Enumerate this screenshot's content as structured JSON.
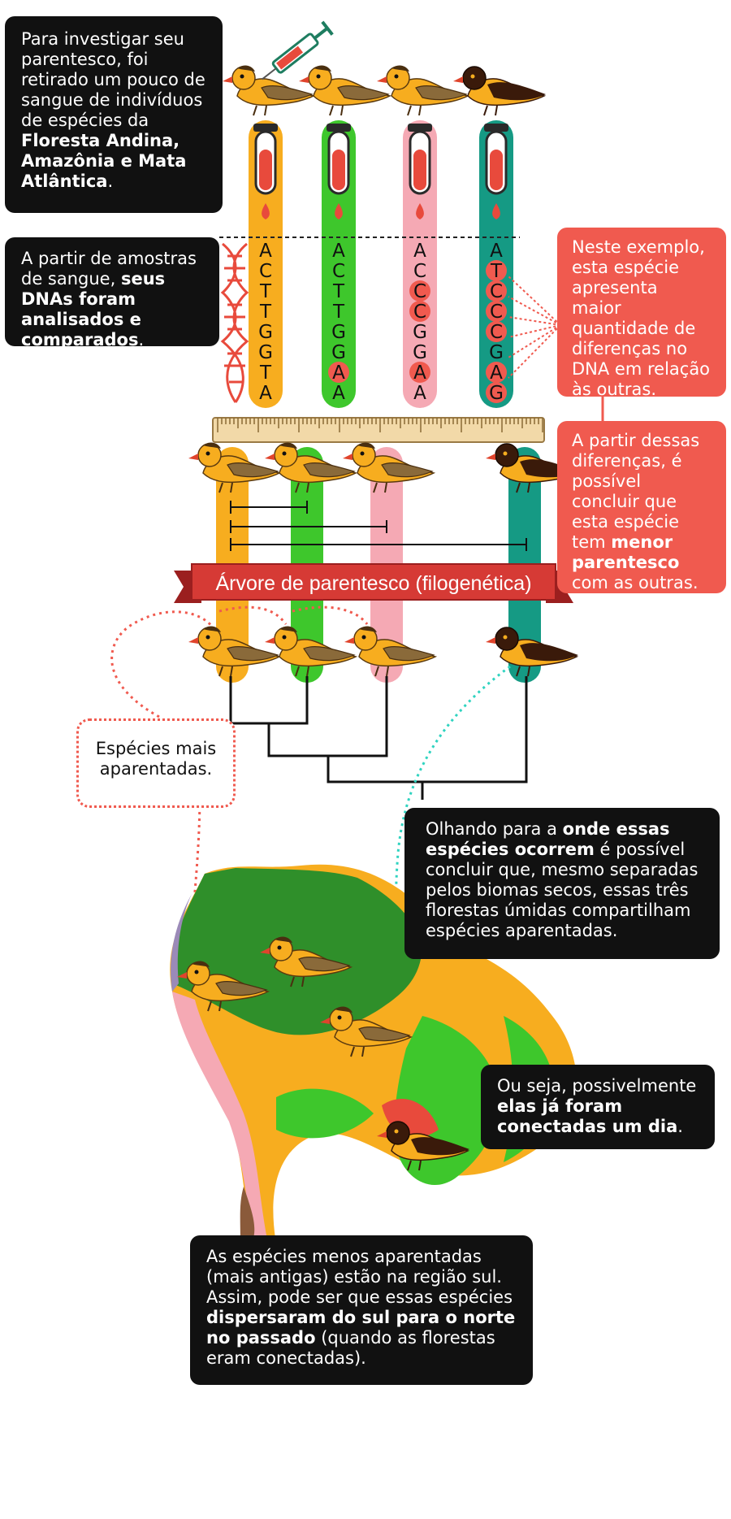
{
  "colors": {
    "orange": "#f7ad1f",
    "green": "#3ec72c",
    "pink": "#f5a9b4",
    "teal": "#159a84",
    "red": "#f05a4f",
    "dark_green": "#2f8f2a",
    "black": "#111111"
  },
  "boxes": {
    "intro": {
      "text1": "Para investigar seu parentesco, foi retirado um pouco de sangue de indivíduos de espécies da ",
      "bold1": "Floresta Andina, Amazônia e Mata Atlântica",
      "text2": "."
    },
    "dna": {
      "text1": "A partir de amostras de sangue, ",
      "bold1": "seus DNAs foram analisados e comparados",
      "text2": "."
    },
    "example": {
      "text1": "Neste exemplo, esta espécie apresenta maior quantidade de diferenças no DNA em relação às outras."
    },
    "conclusion": {
      "text1": "A partir dessas diferenças, é possível concluir que esta espécie tem ",
      "bold1": "menor parentesco",
      "text2": " com as outras."
    },
    "related": {
      "text1": "Espécies mais aparentadas."
    },
    "occurrence": {
      "text1": "Olhando para a ",
      "bold1": "onde essas espécies ocorrem",
      "text2": " é possível concluir que, mesmo separadas pelos biomas secos, essas três florestas úmidas compartilham espécies aparentadas."
    },
    "connected": {
      "text1": "Ou seja, possivelmente ",
      "bold1": "elas já foram conectadas um dia",
      "text2": "."
    },
    "south": {
      "text1": "As espécies menos aparentadas (mais antigas) estão na região sul. Assim, pode ser que essas espécies ",
      "bold1": "dispersaram do sul para o norte no passado",
      "text2": " (quando as florestas eram conectadas)."
    }
  },
  "ribbon": {
    "title": "Árvore de parentesco (filogenética)"
  },
  "dna_sequences": [
    {
      "letters": [
        "A",
        "C",
        "T",
        "T",
        "G",
        "G",
        "T",
        "A"
      ],
      "diff": [
        false,
        false,
        false,
        false,
        false,
        false,
        false,
        false
      ]
    },
    {
      "letters": [
        "A",
        "C",
        "T",
        "T",
        "G",
        "G",
        "A",
        "A"
      ],
      "diff": [
        false,
        false,
        false,
        false,
        false,
        false,
        true,
        false
      ]
    },
    {
      "letters": [
        "A",
        "C",
        "C",
        "C",
        "G",
        "G",
        "A",
        "A"
      ],
      "diff": [
        false,
        false,
        true,
        true,
        false,
        false,
        true,
        false
      ]
    },
    {
      "letters": [
        "A",
        "T",
        "C",
        "C",
        "C",
        "G",
        "A",
        "G"
      ],
      "diff": [
        false,
        true,
        true,
        true,
        true,
        false,
        true,
        true
      ]
    }
  ]
}
